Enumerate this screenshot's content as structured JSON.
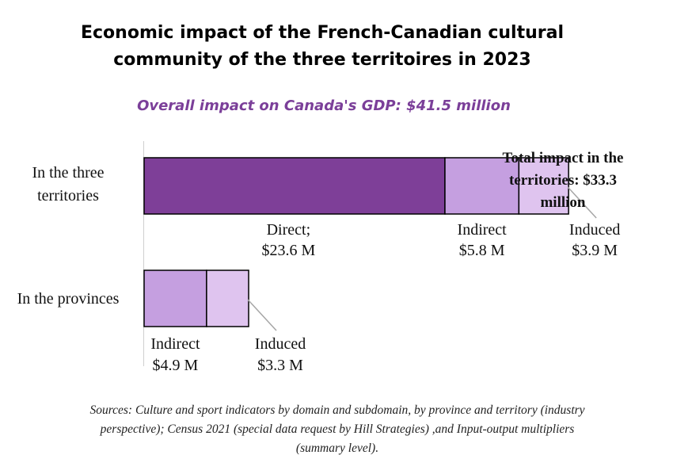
{
  "chart_data": {
    "type": "bar",
    "orientation": "horizontal",
    "stacked": true,
    "title": [
      "Economic impact of the French-Canadian cultural",
      "community of the three territoires in 2023"
    ],
    "subtitle": "Overall impact on Canada's GDP: $41.5 million",
    "categories": [
      "In the three territories",
      "In the provinces"
    ],
    "category_label_lines": [
      [
        "In the three",
        "territories"
      ],
      [
        "In the provinces"
      ]
    ],
    "series": [
      {
        "name": "Direct",
        "values": [
          23.6,
          0
        ],
        "color": "#7e3f98"
      },
      {
        "name": "Indirect",
        "values": [
          5.8,
          4.9
        ],
        "color": "#c59fe0"
      },
      {
        "name": "Induced",
        "values": [
          3.9,
          3.3
        ],
        "color": "#dfc4ef"
      }
    ],
    "data_labels": [
      [
        [
          "Direct;",
          "$23.6 M"
        ],
        [
          "Indirect",
          "$5.8 M"
        ],
        [
          "Induced",
          "$3.9 M"
        ]
      ],
      [
        null,
        [
          "Indirect",
          "$4.9 M"
        ],
        [
          "Induced",
          "$3.3 M"
        ]
      ]
    ],
    "annotation": [
      "Total impact in the",
      "territories: $33.3",
      "million"
    ],
    "xlim": [
      0,
      35
    ],
    "grid": false,
    "legend": "none"
  },
  "source_note": [
    "Sources: Culture and sport indicators by domain and subdomain, by province and territory (industry",
    "perspective); Census 2021 (special data request by Hill Strategies) ,and Input-output multipliers",
    "(summary level)."
  ]
}
